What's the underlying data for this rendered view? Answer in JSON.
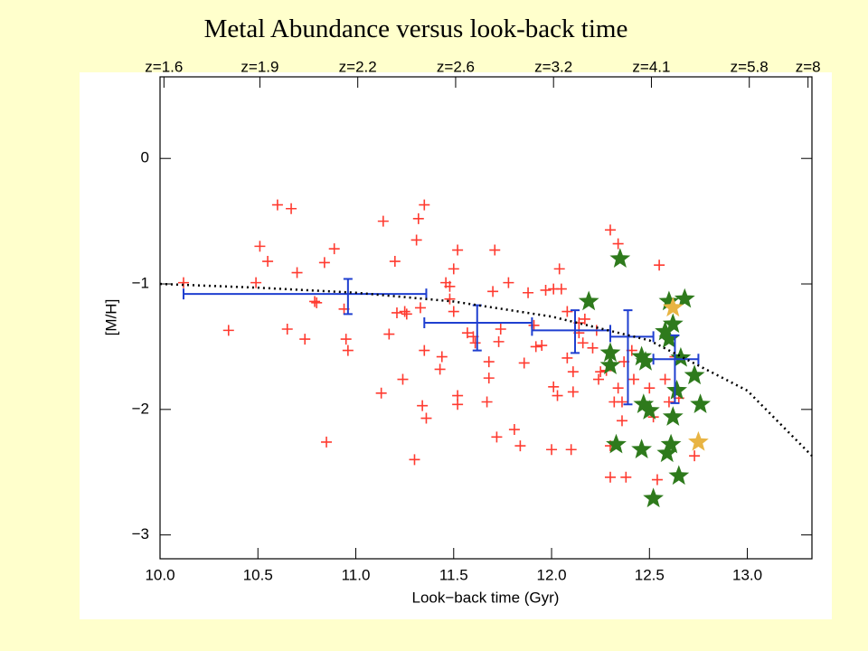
{
  "chart_data": {
    "type": "scatter",
    "title": "Metal Abundance versus look-back time",
    "xlabel": "Look−back time (Gyr)",
    "ylabel": "[M/H]",
    "xlim": [
      10.0,
      13.33
    ],
    "ylim": [
      -3.19,
      0.65
    ],
    "xticks": [
      {
        "value": 10,
        "label": "10.0"
      },
      {
        "value": 10.5,
        "label": "10.5"
      },
      {
        "value": 11,
        "label": "11.0"
      },
      {
        "value": 11.5,
        "label": "11.5"
      },
      {
        "value": 12,
        "label": "12.0"
      },
      {
        "value": 12.5,
        "label": "12.5"
      },
      {
        "value": 13,
        "label": "13.0"
      }
    ],
    "yticks": [
      0,
      {
        "value": -1,
        "label": "−1"
      },
      {
        "value": -2,
        "label": "−2"
      },
      {
        "value": -3,
        "label": "−3"
      }
    ],
    "x2ticks": [
      {
        "value": 10.02,
        "label": "z=1.6"
      },
      {
        "value": 10.51,
        "label": "z=1.9"
      },
      {
        "value": 11.01,
        "label": "z=2.2"
      },
      {
        "value": 11.51,
        "label": "z=2.6"
      },
      {
        "value": 12.01,
        "label": "z=3.2"
      },
      {
        "value": 12.51,
        "label": "z=4.1"
      },
      {
        "value": 13.01,
        "label": "z=5.8"
      },
      {
        "value": 13.31,
        "label": "z=8"
      }
    ],
    "series": [
      {
        "marker": "plus",
        "color": "#ff3b30",
        "x": [
          10.12,
          10.35,
          10.51,
          10.55,
          10.49,
          10.6,
          10.67,
          10.65,
          10.7,
          10.74,
          10.89,
          10.84,
          10.79,
          10.8,
          10.94,
          10.95,
          10.96,
          10.85,
          11.14,
          11.2,
          11.21,
          11.25,
          11.17,
          11.13,
          11.26,
          11.24,
          11.3,
          11.32,
          11.31,
          11.35,
          11.33,
          11.35,
          11.34,
          11.36,
          11.46,
          11.48,
          11.5,
          11.52,
          11.48,
          11.5,
          11.44,
          11.43,
          11.52,
          11.52,
          11.57,
          11.6,
          11.61,
          11.71,
          11.7,
          11.78,
          11.68,
          11.68,
          11.67,
          11.72,
          11.73,
          11.74,
          11.81,
          11.84,
          11.86,
          11.88,
          11.91,
          11.92,
          11.95,
          11.97,
          12.01,
          12.04,
          12.05,
          12.08,
          12.01,
          12.03,
          12.0,
          12.1,
          12.11,
          12.14,
          12.14,
          12.17,
          12.16,
          12.21,
          12.08,
          12.11,
          12.3,
          12.34,
          12.23,
          12.25,
          12.24,
          12.28,
          12.3,
          12.3,
          12.38,
          12.36,
          12.36,
          12.34,
          12.37,
          12.41,
          12.46,
          12.42,
          12.55,
          12.5,
          12.52,
          12.58,
          12.6,
          12.54,
          12.63,
          12.73,
          12.65,
          12.32
        ],
        "values": [
          -0.99,
          -1.37,
          -0.7,
          -0.82,
          -0.99,
          -0.37,
          -0.4,
          -1.36,
          -0.91,
          -1.44,
          -0.72,
          -0.83,
          -1.14,
          -1.15,
          -1.2,
          -1.44,
          -1.53,
          -2.26,
          -0.5,
          -0.82,
          -1.23,
          -1.22,
          -1.4,
          -1.87,
          -1.24,
          -1.76,
          -2.4,
          -0.48,
          -0.65,
          -0.37,
          -1.19,
          -1.53,
          -1.97,
          -2.07,
          -0.99,
          -1.02,
          -0.88,
          -0.73,
          -1.12,
          -1.22,
          -1.58,
          -1.68,
          -1.89,
          -1.96,
          -1.39,
          -1.42,
          -1.47,
          -0.73,
          -1.06,
          -0.99,
          -1.62,
          -1.75,
          -1.94,
          -2.22,
          -1.46,
          -1.36,
          -2.16,
          -2.29,
          -1.63,
          -1.07,
          -1.33,
          -1.5,
          -1.49,
          -1.05,
          -1.04,
          -0.88,
          -1.04,
          -1.22,
          -1.82,
          -1.89,
          -2.32,
          -2.32,
          -1.86,
          -1.31,
          -1.39,
          -1.28,
          -1.47,
          -1.51,
          -1.59,
          -1.7,
          -0.57,
          -0.68,
          -1.37,
          -1.7,
          -1.76,
          -1.69,
          -2.29,
          -2.54,
          -2.54,
          -2.09,
          -1.94,
          -1.83,
          -1.62,
          -1.53,
          -1.58,
          -1.76,
          -0.85,
          -1.83,
          -2.06,
          -1.76,
          -1.94,
          -2.56,
          -1.58,
          -2.37,
          -1.91,
          -1.94
        ]
      },
      {
        "marker": "star",
        "color": "#2e7a1c",
        "x": [
          12.35,
          12.19,
          12.6,
          12.68,
          12.62,
          12.58,
          12.6,
          12.3,
          12.46,
          12.48,
          12.3,
          12.66,
          12.73,
          12.64,
          12.47,
          12.5,
          12.62,
          12.76,
          12.33,
          12.46,
          12.61,
          12.59,
          12.65,
          12.52
        ],
        "values": [
          -0.8,
          -1.14,
          -1.14,
          -1.12,
          -1.32,
          -1.38,
          -1.44,
          -1.55,
          -1.58,
          -1.62,
          -1.65,
          -1.59,
          -1.73,
          -1.85,
          -1.96,
          -2.01,
          -2.06,
          -1.96,
          -2.28,
          -2.32,
          -2.28,
          -2.35,
          -2.53,
          -2.71
        ]
      },
      {
        "marker": "star",
        "color": "#e8b443",
        "x": [
          12.62,
          12.75
        ],
        "values": [
          -1.19,
          -2.26
        ]
      },
      {
        "marker": "errorbar",
        "color": "#1f3fd0",
        "x": [
          10.96,
          11.62,
          12.12,
          12.39,
          12.63
        ],
        "values": [
          -1.08,
          -1.31,
          -1.37,
          -1.42,
          -1.6
        ],
        "xlow": [
          10.12,
          11.35,
          11.9,
          12.3,
          12.52
        ],
        "xhigh": [
          11.36,
          11.9,
          12.3,
          12.52,
          12.75
        ],
        "ylow": [
          -1.24,
          -1.53,
          -1.55,
          -1.96,
          -1.95
        ],
        "yhigh": [
          -0.96,
          -1.17,
          -1.21,
          -1.21,
          -1.41
        ]
      },
      {
        "marker": "dotted-line",
        "color": "#000000",
        "x": [
          10.0,
          10.5,
          11.0,
          11.5,
          12.0,
          12.5,
          13.0,
          13.33
        ],
        "values": [
          -1.0,
          -1.03,
          -1.07,
          -1.14,
          -1.26,
          -1.45,
          -1.85,
          -2.37
        ]
      }
    ]
  }
}
